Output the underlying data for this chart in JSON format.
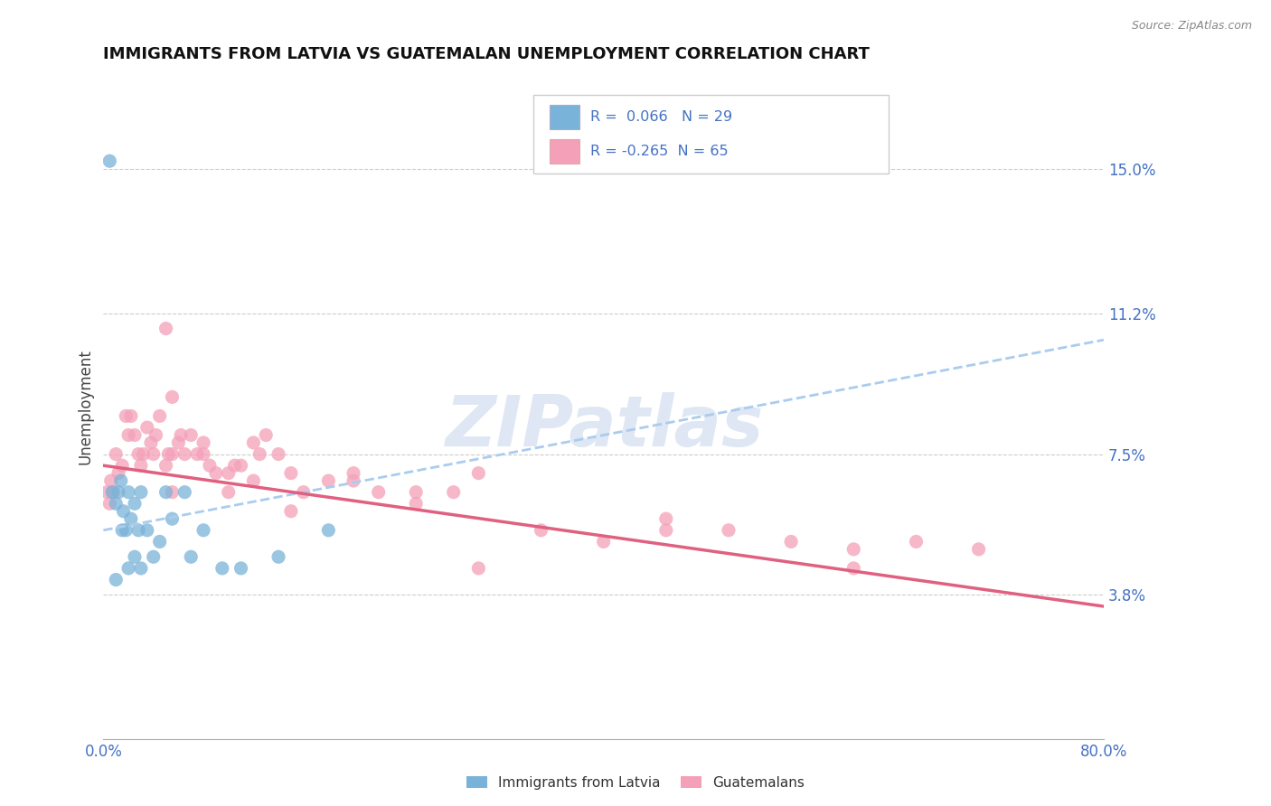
{
  "title": "IMMIGRANTS FROM LATVIA VS GUATEMALAN UNEMPLOYMENT CORRELATION CHART",
  "source_text": "Source: ZipAtlas.com",
  "watermark": "ZIPatlas",
  "ylabel": "Unemployment",
  "xlim": [
    0.0,
    80.0
  ],
  "ylim": [
    0.0,
    17.5
  ],
  "yticks": [
    3.8,
    7.5,
    11.2,
    15.0
  ],
  "xtick_labels": [
    "0.0%",
    "80.0%"
  ],
  "xtick_positions": [
    0.0,
    80.0
  ],
  "blue_color": "#7ab3d9",
  "pink_color": "#f4a0b8",
  "trend_blue_color": "#aaccee",
  "trend_pink_color": "#e06080",
  "grid_color": "#cccccc",
  "bg_color": "#ffffff",
  "label_color": "#4472C4",
  "series1_label": "Immigrants from Latvia",
  "series2_label": "Guatemalans",
  "R1": 0.066,
  "N1": 29,
  "R2": -0.265,
  "N2": 65,
  "blue_trend_start_y": 5.5,
  "blue_trend_end_y": 10.5,
  "blue_trend_start_x": 0.0,
  "blue_trend_end_x": 80.0,
  "pink_trend_start_y": 7.2,
  "pink_trend_end_y": 3.5,
  "pink_trend_start_x": 0.0,
  "pink_trend_end_x": 80.0,
  "blue_x": [
    0.5,
    0.7,
    1.0,
    1.2,
    1.4,
    1.6,
    1.8,
    2.0,
    2.2,
    2.5,
    2.8,
    3.0,
    3.5,
    4.0,
    4.5,
    5.0,
    5.5,
    6.5,
    7.0,
    8.0,
    9.5,
    11.0,
    14.0,
    18.0,
    1.0,
    1.5,
    2.0,
    2.5,
    3.0
  ],
  "blue_y": [
    15.2,
    6.5,
    6.2,
    6.5,
    6.8,
    6.0,
    5.5,
    6.5,
    5.8,
    6.2,
    5.5,
    6.5,
    5.5,
    4.8,
    5.2,
    6.5,
    5.8,
    6.5,
    4.8,
    5.5,
    4.5,
    4.5,
    4.8,
    5.5,
    4.2,
    5.5,
    4.5,
    4.8,
    4.5
  ],
  "pink_x": [
    0.3,
    0.5,
    0.6,
    0.8,
    1.0,
    1.2,
    1.5,
    1.8,
    2.0,
    2.2,
    2.5,
    2.8,
    3.0,
    3.2,
    3.5,
    3.8,
    4.0,
    4.2,
    4.5,
    5.0,
    5.2,
    5.5,
    5.5,
    6.0,
    6.2,
    6.5,
    7.0,
    7.5,
    8.0,
    8.5,
    9.0,
    10.0,
    10.5,
    11.0,
    12.0,
    12.5,
    13.0,
    14.0,
    15.0,
    16.0,
    18.0,
    20.0,
    22.0,
    25.0,
    28.0,
    30.0,
    35.0,
    40.0,
    45.0,
    50.0,
    55.0,
    60.0,
    65.0,
    70.0,
    5.0,
    8.0,
    12.0,
    20.0,
    30.0,
    45.0,
    60.0,
    5.5,
    10.0,
    15.0,
    25.0
  ],
  "pink_y": [
    6.5,
    6.2,
    6.8,
    6.5,
    7.5,
    7.0,
    7.2,
    8.5,
    8.0,
    8.5,
    8.0,
    7.5,
    7.2,
    7.5,
    8.2,
    7.8,
    7.5,
    8.0,
    8.5,
    7.2,
    7.5,
    7.5,
    9.0,
    7.8,
    8.0,
    7.5,
    8.0,
    7.5,
    7.5,
    7.2,
    7.0,
    7.0,
    7.2,
    7.2,
    7.8,
    7.5,
    8.0,
    7.5,
    7.0,
    6.5,
    6.8,
    7.0,
    6.5,
    6.5,
    6.5,
    7.0,
    5.5,
    5.2,
    5.5,
    5.5,
    5.2,
    5.0,
    5.2,
    5.0,
    10.8,
    7.8,
    6.8,
    6.8,
    4.5,
    5.8,
    4.5,
    6.5,
    6.5,
    6.0,
    6.2
  ]
}
